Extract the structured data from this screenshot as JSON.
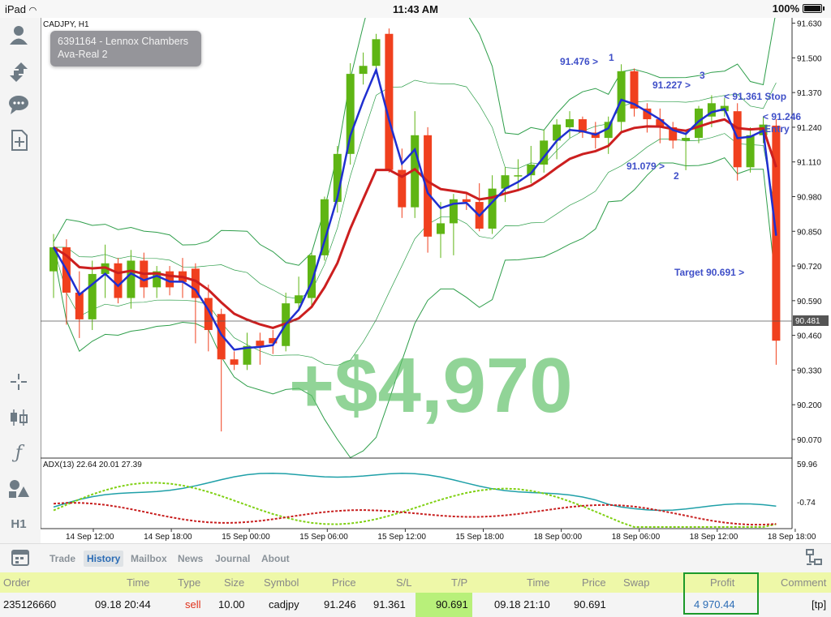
{
  "status_bar": {
    "device": "iPad",
    "time": "11:43 AM",
    "battery": "100%"
  },
  "chart": {
    "symbol_label": "CADJPY, H1",
    "account": {
      "line1": "6391164 - Lennox Chambers",
      "line2": "Ava-Real 2"
    },
    "current_price": "90.481",
    "profit_watermark": "+$4,970",
    "y_ticks": [
      "91.630",
      "91.500",
      "91.370",
      "91.240",
      "91.110",
      "90.980",
      "90.850",
      "90.720",
      "90.590",
      "90.460",
      "90.330",
      "90.200",
      "90.070"
    ],
    "x_ticks": [
      "14 Sep 12:00",
      "14 Sep 18:00",
      "15 Sep 00:00",
      "15 Sep 06:00",
      "15 Sep 12:00",
      "15 Sep 18:00",
      "18 Sep 00:00",
      "18 Sep 06:00",
      "18 Sep 12:00",
      "18 Sep 18:00"
    ],
    "annotations": {
      "p1_price": "91.476 >",
      "p1_num": "1",
      "p2_price": "91.079 >",
      "p2_num": "2",
      "p3_price": "91.227 >",
      "p3_num": "3",
      "stop": "< 91.361 Stop",
      "entry_price": "< 91.246",
      "entry_label": "Entry",
      "target": "Target 90.691 >"
    },
    "indicator": {
      "label": "ADX(13) 22.64 20.01 27.39",
      "top": "59.96",
      "bottom": "-0.74"
    },
    "colors": {
      "bull": "#5fb514",
      "bear": "#f0401e",
      "ma_fast": "#1f2fd0",
      "ma_slow": "#cc1f1f",
      "bands": "#2e9e4a",
      "watermark": "#62c26b"
    }
  },
  "chart_data": {
    "type": "candlestick",
    "symbol": "CADJPY",
    "timeframe": "H1",
    "ylim": [
      90.0,
      91.65
    ],
    "ohlc": [
      [
        90.7,
        90.84,
        90.6,
        90.79
      ],
      [
        90.79,
        90.82,
        90.5,
        90.62
      ],
      [
        90.62,
        90.7,
        90.45,
        90.52
      ],
      [
        90.52,
        90.74,
        90.48,
        90.69
      ],
      [
        90.69,
        90.8,
        90.6,
        90.73
      ],
      [
        90.73,
        90.75,
        90.58,
        90.6
      ],
      [
        90.6,
        90.78,
        90.56,
        90.74
      ],
      [
        90.74,
        90.77,
        90.6,
        90.64
      ],
      [
        90.64,
        90.72,
        90.6,
        90.7
      ],
      [
        90.7,
        90.72,
        90.61,
        90.64
      ],
      [
        90.7,
        90.75,
        90.6,
        90.66
      ],
      [
        90.71,
        90.73,
        90.43,
        90.6
      ],
      [
        90.6,
        90.65,
        90.4,
        90.48
      ],
      [
        90.54,
        90.56,
        90.1,
        90.37
      ],
      [
        90.37,
        90.4,
        90.33,
        90.35
      ],
      [
        90.35,
        90.47,
        90.33,
        90.42
      ],
      [
        90.44,
        90.47,
        90.35,
        90.42
      ],
      [
        90.45,
        90.48,
        90.39,
        90.43
      ],
      [
        90.42,
        90.62,
        90.4,
        90.58
      ],
      [
        90.58,
        90.68,
        90.55,
        90.61
      ],
      [
        90.6,
        90.77,
        90.57,
        90.76
      ],
      [
        90.76,
        90.98,
        90.74,
        90.97
      ],
      [
        90.96,
        91.17,
        90.92,
        91.14
      ],
      [
        91.14,
        91.48,
        91.1,
        91.44
      ],
      [
        91.44,
        91.52,
        91.4,
        91.47
      ],
      [
        91.47,
        91.59,
        91.44,
        91.57
      ],
      [
        91.59,
        91.61,
        91.07,
        91.08
      ],
      [
        91.08,
        91.16,
        90.9,
        90.94
      ],
      [
        90.94,
        91.3,
        90.9,
        91.21
      ],
      [
        91.21,
        91.24,
        90.77,
        90.83
      ],
      [
        90.84,
        90.96,
        90.75,
        90.88
      ],
      [
        90.88,
        90.99,
        90.76,
        90.97
      ],
      [
        90.97,
        90.99,
        90.93,
        90.96
      ],
      [
        90.96,
        91.03,
        90.85,
        90.86
      ],
      [
        90.86,
        91.06,
        90.84,
        91.01
      ],
      [
        91.01,
        91.09,
        90.96,
        91.06
      ],
      [
        91.06,
        91.12,
        91.0,
        91.06
      ],
      [
        91.06,
        91.17,
        91.03,
        91.1
      ],
      [
        91.1,
        91.23,
        91.07,
        91.19
      ],
      [
        91.19,
        91.27,
        91.12,
        91.25
      ],
      [
        91.24,
        91.3,
        91.2,
        91.27
      ],
      [
        91.27,
        91.28,
        91.2,
        91.22
      ],
      [
        91.22,
        91.26,
        91.16,
        91.2
      ],
      [
        91.2,
        91.28,
        91.14,
        91.26
      ],
      [
        91.26,
        91.476,
        91.22,
        91.45
      ],
      [
        91.45,
        91.46,
        91.28,
        91.31
      ],
      [
        91.31,
        91.33,
        91.22,
        91.27
      ],
      [
        91.27,
        91.31,
        91.18,
        91.24
      ],
      [
        91.24,
        91.26,
        91.16,
        91.19
      ],
      [
        91.19,
        91.23,
        91.079,
        91.2
      ],
      [
        91.2,
        91.32,
        91.18,
        91.31
      ],
      [
        91.28,
        91.36,
        91.24,
        91.33
      ],
      [
        91.3,
        91.35,
        91.28,
        91.32
      ],
      [
        91.3,
        91.33,
        91.04,
        91.09
      ],
      [
        91.09,
        91.24,
        91.07,
        91.21
      ],
      [
        91.21,
        91.28,
        91.18,
        91.25
      ],
      [
        91.246,
        91.27,
        90.35,
        90.44
      ]
    ]
  },
  "tabs": [
    "Trade",
    "History",
    "Mailbox",
    "News",
    "Journal",
    "About"
  ],
  "table": {
    "headers": {
      "order": "Order",
      "time": "Time",
      "type": "Type",
      "size": "Size",
      "symbol": "Symbol",
      "price": "Price",
      "sl": "S/L",
      "tp": "T/P",
      "time2": "Time",
      "price2": "Price",
      "swap": "Swap",
      "profit": "Profit",
      "comment": "Comment"
    },
    "row": {
      "order": "235126660",
      "time": "09.18 20:44",
      "type": "sell",
      "size": "10.00",
      "symbol": "cadjpy",
      "price": "91.246",
      "sl": "91.361",
      "tp": "90.691",
      "time2": "09.18 21:10",
      "price2": "90.691",
      "swap": "",
      "profit": "4 970.44",
      "comment": "[tp]"
    }
  }
}
